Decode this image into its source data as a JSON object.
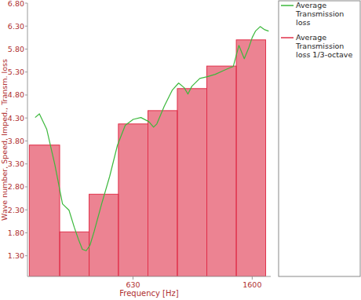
{
  "chart_data": {
    "type": "line",
    "x_label": "Frequency [Hz]",
    "y_label": "Wave number, Speed, Imped., Transm. loss",
    "log": "x",
    "grid": false,
    "legend": "right",
    "xlim": [
      276,
      1850
    ],
    "xticks": [
      630,
      1600
    ],
    "ylim": [
      0.85,
      6.8
    ],
    "yticks": [
      {
        "value": 1.3,
        "label": "1.30"
      },
      {
        "value": 1.8,
        "label": "1.80"
      },
      {
        "value": 2.3,
        "label": "2.30"
      },
      {
        "value": 2.8,
        "label": "2.80"
      },
      {
        "value": 3.3,
        "label": "3.30"
      },
      {
        "value": 3.8,
        "label": "3.80"
      },
      {
        "value": 4.3,
        "label": "4.30"
      },
      {
        "value": 4.8,
        "label": "4.80"
      },
      {
        "value": 5.3,
        "label": "5.30"
      },
      {
        "value": 5.8,
        "label": "5.80"
      },
      {
        "value": 6.3,
        "label": "6.30"
      },
      {
        "value": 6.8,
        "label": "6.80"
      }
    ],
    "series": [
      {
        "name": "Average Transmission loss",
        "type": "line",
        "color": "#3cb83c",
        "x": [
          293,
          303,
          321,
          342,
          363,
          382,
          398,
          411,
          424,
          437,
          450,
          465,
          493,
          525,
          558,
          593,
          631,
          670,
          713,
          740,
          759,
          805,
          857,
          900,
          940,
          968,
          998,
          1062,
          1127,
          1199,
          1276,
          1330,
          1380,
          1442,
          1504,
          1560,
          1600,
          1641,
          1703,
          1766,
          1820
        ],
        "values": [
          4.31,
          4.39,
          4.05,
          3.28,
          2.43,
          2.29,
          1.92,
          1.66,
          1.44,
          1.41,
          1.53,
          1.83,
          2.43,
          3.03,
          3.71,
          4.14,
          4.27,
          4.31,
          4.22,
          4.1,
          4.17,
          4.56,
          4.91,
          5.06,
          4.96,
          4.82,
          4.99,
          5.16,
          5.2,
          5.25,
          5.33,
          5.38,
          5.42,
          5.88,
          5.59,
          5.84,
          6.05,
          6.19,
          6.29,
          6.22,
          6.19
        ]
      },
      {
        "name": "Average Transmission loss 1/3-octave",
        "type": "bar",
        "color": "#e0304a",
        "bins": [
          280,
          355,
          447,
          562,
          708,
          891,
          1122,
          1413,
          1778
        ],
        "values": [
          3.71,
          1.82,
          2.64,
          4.17,
          4.46,
          4.94,
          5.43,
          6.0
        ]
      }
    ]
  }
}
